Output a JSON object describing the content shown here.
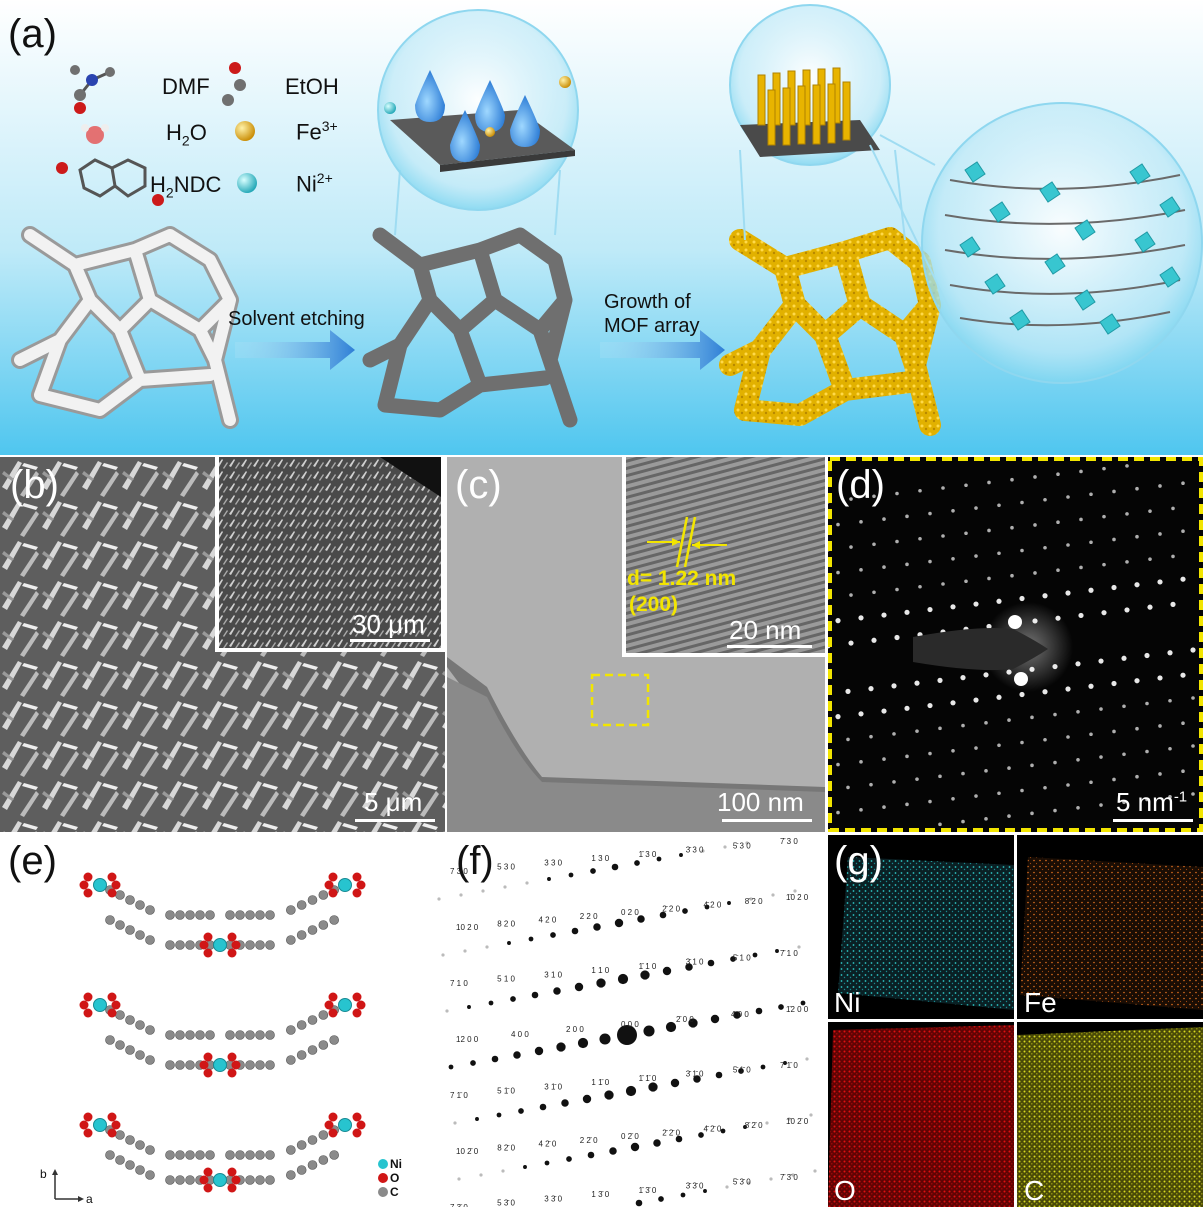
{
  "panel_a": {
    "label": "(a)",
    "reagents": {
      "dmf": "DMF",
      "etoh": "EtOH",
      "h2o_h": "H",
      "h2o_sub": "2",
      "h2o_o": "O",
      "fe_base": "Fe",
      "fe_sup": "3+",
      "h2ndc_h": "H",
      "h2ndc_sub": "2",
      "h2ndc_rest": "NDC",
      "ni_base": "Ni",
      "ni_sup": "2+"
    },
    "step1": "Solvent etching",
    "step2_line1": "Growth of",
    "step2_line2": "MOF array",
    "colors": {
      "bg_top": "#ffffff",
      "bg_bottom": "#4fc6ef",
      "gold": "#e6b800",
      "cyan": "#38c6d0"
    }
  },
  "panel_b": {
    "label": "(b)",
    "scale_main": "5 μm",
    "scale_inset": "30 μm"
  },
  "panel_c": {
    "label": "(c)",
    "scale_main": "100 nm",
    "scale_inset": "20 nm",
    "d_spacing": "d= 1.22 nm",
    "plane": "(200)"
  },
  "panel_d": {
    "label": "(d)",
    "scale": "5 nm",
    "scale_sup": "-1"
  },
  "panel_e": {
    "label": "(e)",
    "axis_b": "b",
    "axis_a": "a",
    "legend": [
      {
        "name": "Ni",
        "color": "#27c4cf"
      },
      {
        "name": "O",
        "color": "#d01616"
      },
      {
        "name": "C",
        "color": "#8a8a8a"
      }
    ]
  },
  "panel_f": {
    "label": "(f)",
    "rows": [
      [
        "7 3 0",
        "5 3 0",
        "3 3 0",
        "1 3 0",
        "1̄ 3 0",
        "3̄ 3 0",
        "5̄ 3 0",
        "7̄ 3 0"
      ],
      [
        "10 2 0",
        "8 2 0",
        "4 2 0",
        "2 2 0",
        "0 2 0",
        "2̄ 2 0",
        "4̄ 2 0",
        "8̄ 2 0",
        "1̄0 2 0"
      ],
      [
        "7 1 0",
        "5 1 0",
        "3 1 0",
        "1 1 0",
        "1̄ 1 0",
        "3̄ 1 0",
        "5̄ 1 0",
        "7̄ 1 0"
      ],
      [
        "12 0 0",
        "4 0 0",
        "2 0 0",
        "0 0 0",
        "2̄ 0 0",
        "4̄ 0 0",
        "1̄2 0 0"
      ],
      [
        "7 1̄ 0",
        "5 1̄ 0",
        "3 1̄ 0",
        "1 1̄ 0",
        "1̄ 1̄ 0",
        "3̄ 1̄ 0",
        "5̄ 1̄ 0",
        "7̄ 1̄ 0"
      ],
      [
        "10 2̄ 0",
        "8 2̄ 0",
        "4 2̄ 0",
        "2 2̄ 0",
        "0 2̄ 0",
        "2̄ 2̄ 0",
        "4̄ 2̄ 0",
        "8̄ 2̄ 0",
        "1̄0 2̄ 0"
      ],
      [
        "7 3̄ 0",
        "5 3̄ 0",
        "3 3̄ 0",
        "1 3̄ 0",
        "1̄ 3̄ 0",
        "3̄ 3̄ 0",
        "5̄ 3̄ 0",
        "7̄ 3̄ 0"
      ]
    ]
  },
  "panel_g": {
    "label": "(g)",
    "maps": [
      {
        "element": "Ni",
        "color": "#2ec4c4"
      },
      {
        "element": "Fe",
        "color": "#e07020"
      },
      {
        "element": "O",
        "color": "#e01010"
      },
      {
        "element": "C",
        "color": "#d8d820"
      }
    ]
  }
}
